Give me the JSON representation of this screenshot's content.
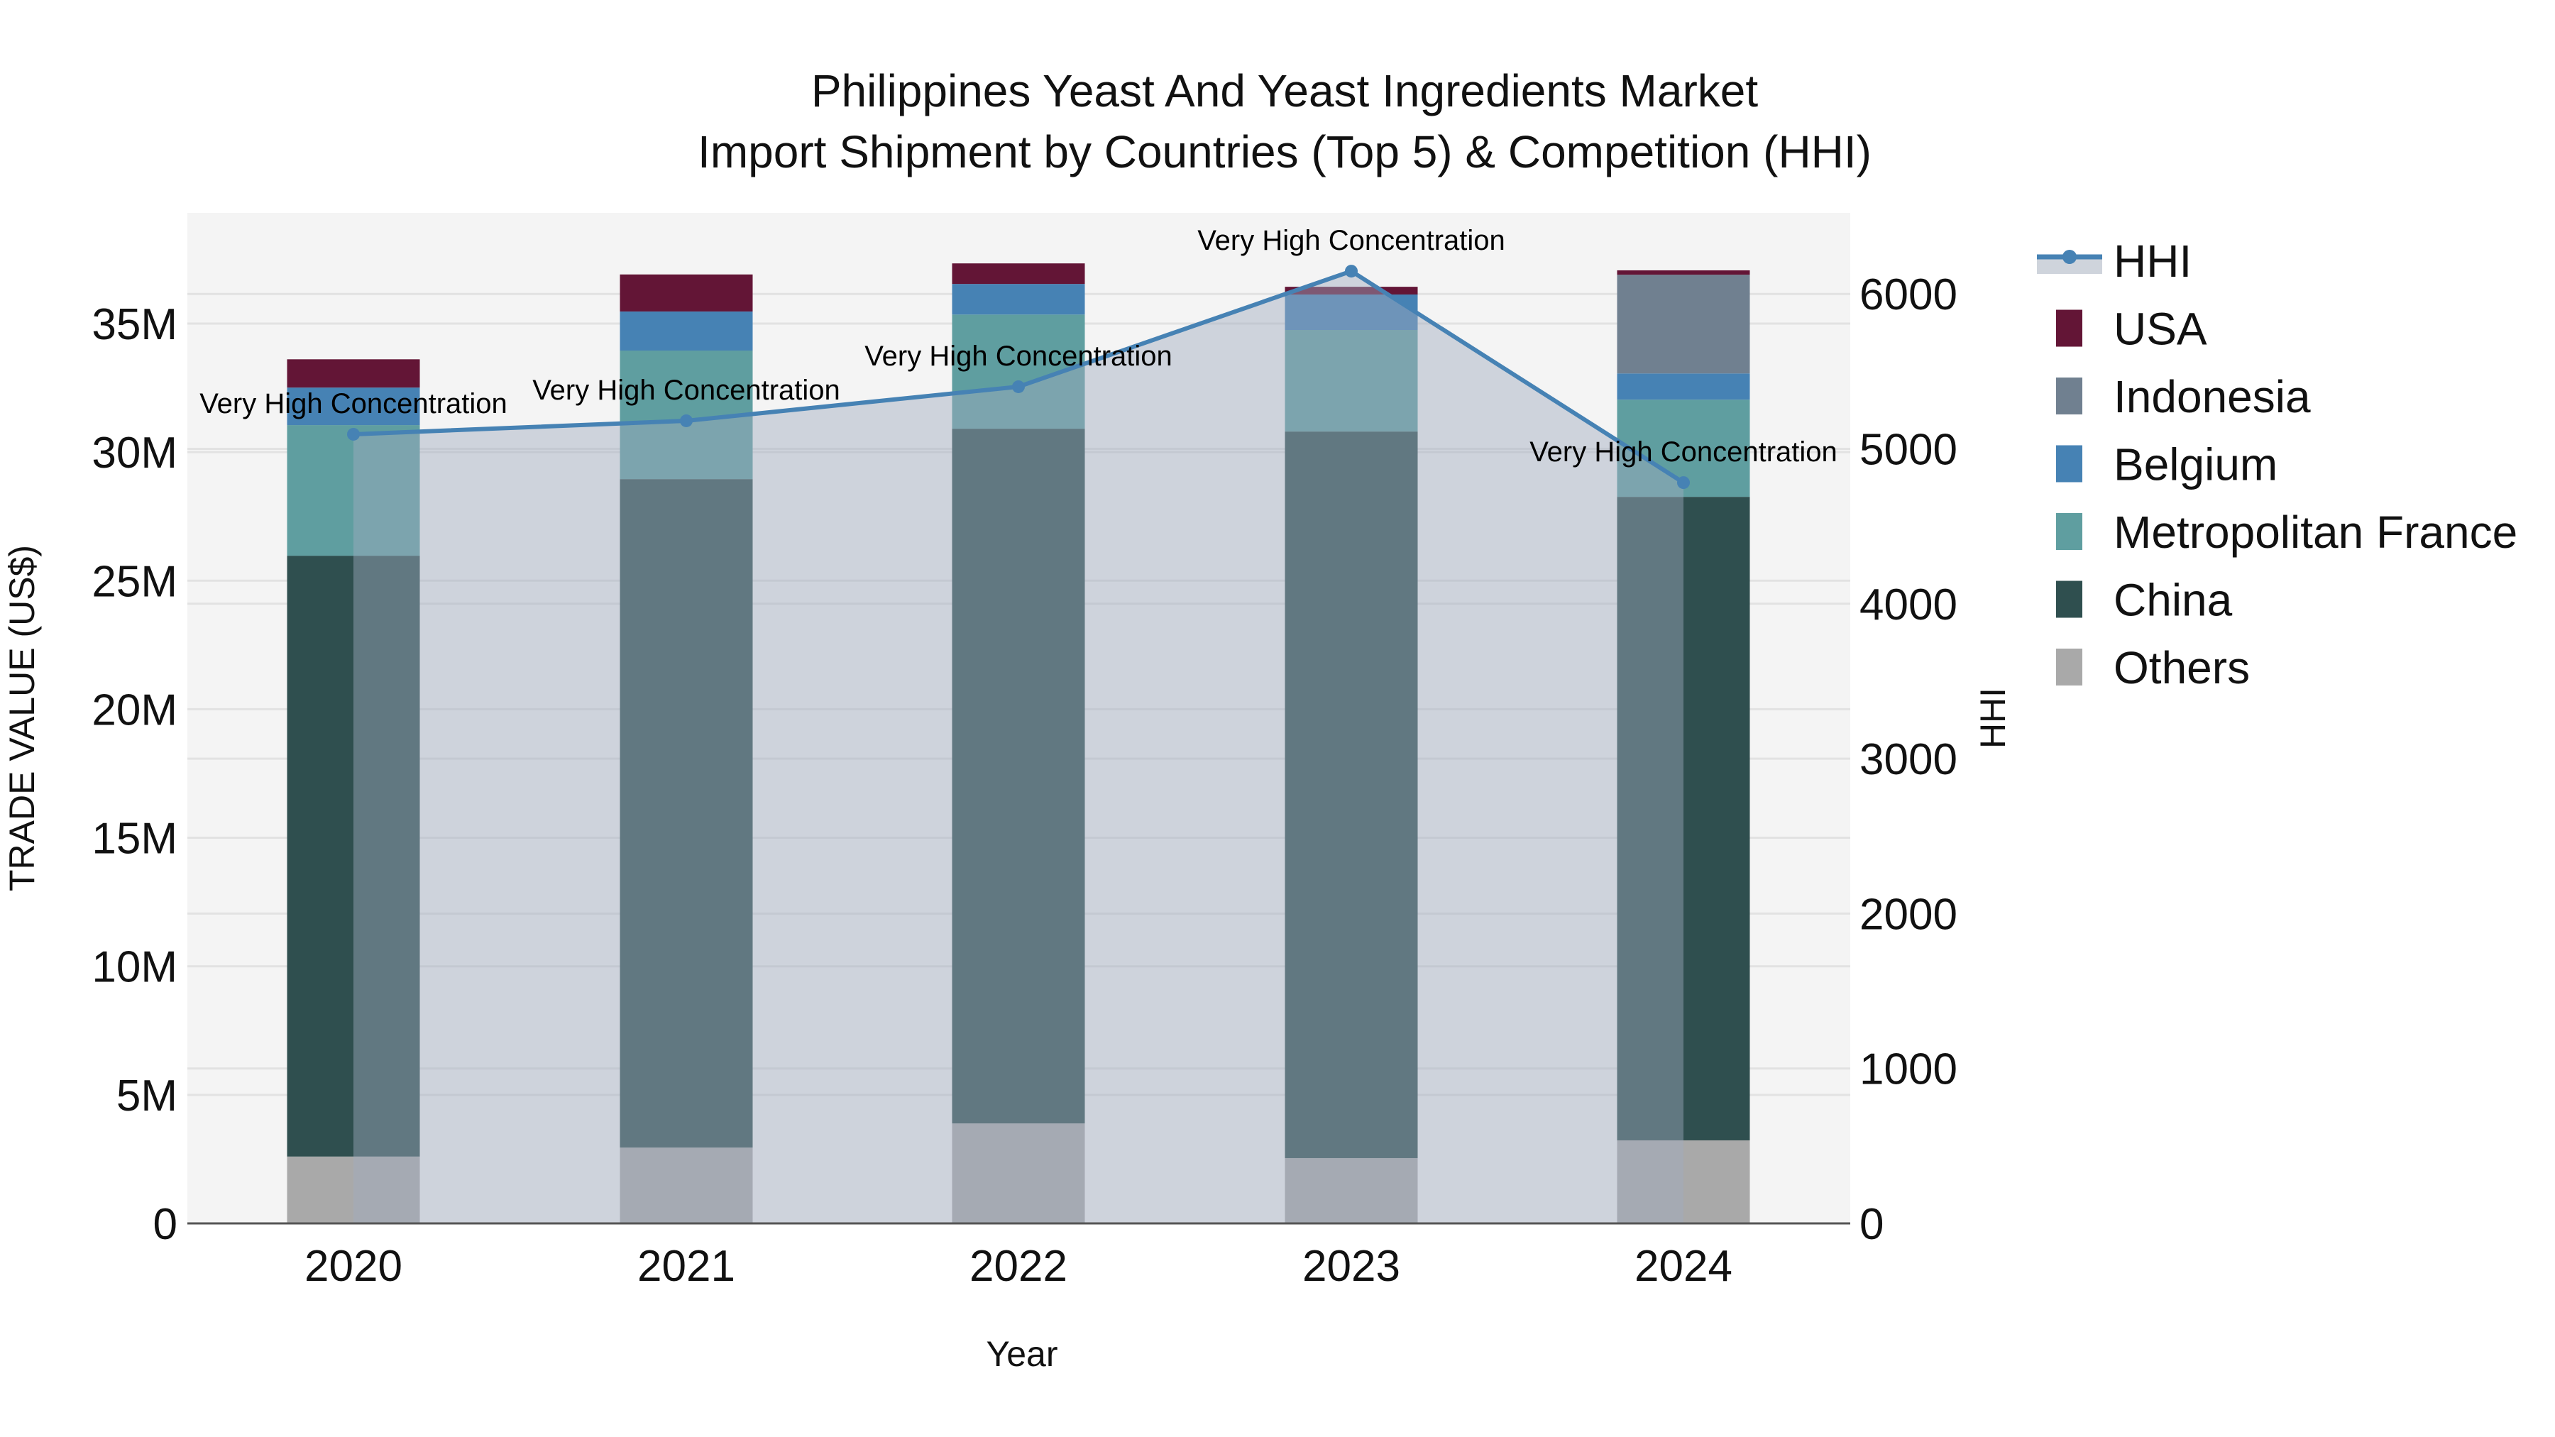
{
  "chart_data": {
    "type": "bar",
    "stacked": true,
    "title": "Philippines Yeast And Yeast Ingredients Market",
    "subtitle": "Import Shipment by Countries (Top 5) & Competition (HHI)",
    "xlabel": "Year",
    "ylabel": "TRADE VALUE (US$)",
    "y2label": "HHI",
    "categories": [
      "2020",
      "2021",
      "2022",
      "2023",
      "2024"
    ],
    "ylim": [
      0,
      39.3
    ],
    "y_ticks": [
      0,
      5,
      10,
      15,
      20,
      25,
      30,
      35
    ],
    "y_tick_labels": [
      "0",
      "5M",
      "10M",
      "15M",
      "20M",
      "25M",
      "30M",
      "35M"
    ],
    "y2lim": [
      0,
      6520
    ],
    "y2_ticks": [
      0,
      1000,
      2000,
      3000,
      4000,
      5000,
      6000
    ],
    "y2_tick_labels": [
      "0",
      "1000",
      "2000",
      "3000",
      "4000",
      "5000",
      "6000"
    ],
    "grid": true,
    "legend_position": "right",
    "units": "million US$",
    "series": [
      {
        "name": "Others",
        "color": "#a9a9a9",
        "values": [
          2.6,
          2.95,
          3.89,
          2.54,
          3.23
        ]
      },
      {
        "name": "China",
        "color": "#2f4f4f",
        "values": [
          23.37,
          26.0,
          27.02,
          28.26,
          25.03
        ]
      },
      {
        "name": "Metropolitan France",
        "color": "#5f9ea0",
        "values": [
          5.08,
          5.0,
          4.44,
          3.95,
          3.78
        ]
      },
      {
        "name": "Belgium",
        "color": "#4682b4",
        "values": [
          1.46,
          1.52,
          1.19,
          1.38,
          1.02
        ]
      },
      {
        "name": "Indonesia",
        "color": "#708090",
        "values": [
          0,
          0,
          0,
          0,
          3.84
        ]
      },
      {
        "name": "USA",
        "color": "#631536",
        "values": [
          1.1,
          1.44,
          0.8,
          0.3,
          0.17
        ]
      }
    ],
    "line_series": {
      "name": "HHI",
      "axis": "right",
      "color": "#4682b4",
      "fill": "rgba(160,170,190,0.45)",
      "values": [
        5094,
        5181,
        5401,
        6147,
        4782
      ],
      "annotations": [
        "Very High Concentration",
        "Very High Concentration",
        "Very High Concentration",
        "Very High Concentration",
        "Very High Concentration"
      ]
    },
    "legend": [
      "HHI",
      "USA",
      "Indonesia",
      "Belgium",
      "Metropolitan France",
      "China",
      "Others"
    ]
  }
}
